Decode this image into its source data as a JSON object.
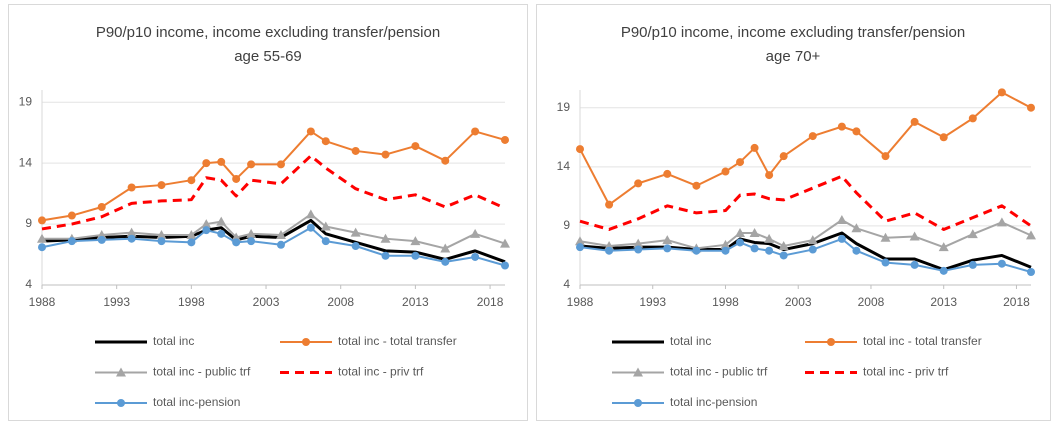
{
  "chart_data": [
    {
      "type": "line",
      "title": [
        "P90/p10 income, income excluding transfer/pension",
        "age 55-69"
      ],
      "x": [
        1988,
        1990,
        1992,
        1994,
        1996,
        1998,
        1999,
        2000,
        2001,
        2002,
        2004,
        2006,
        2007,
        2009,
        2011,
        2013,
        2015,
        2017,
        2019
      ],
      "xlim": [
        1988,
        2019
      ],
      "xticks": [
        1988,
        1993,
        1998,
        2003,
        2008,
        2013,
        2018
      ],
      "ylim": [
        4,
        20
      ],
      "yticks": [
        4,
        9,
        14,
        19
      ],
      "grid": true,
      "series": [
        {
          "name": "total inc",
          "color": "#000000",
          "width": 3,
          "values": [
            7.6,
            7.7,
            7.9,
            8.0,
            7.9,
            8.0,
            8.5,
            8.7,
            7.7,
            8.0,
            7.9,
            9.3,
            8.2,
            7.5,
            6.8,
            6.7,
            6.1,
            6.8,
            5.9
          ]
        },
        {
          "name": "total inc - total transfer",
          "color": "#ed7d31",
          "marker": "circle",
          "values": [
            9.3,
            9.7,
            10.4,
            12.0,
            12.2,
            12.6,
            14.0,
            14.1,
            12.7,
            13.9,
            13.9,
            16.6,
            15.8,
            15.0,
            14.7,
            15.4,
            14.2,
            16.6,
            15.9
          ]
        },
        {
          "name": "total inc - public trf",
          "color": "#a5a5a5",
          "marker": "triangle",
          "values": [
            7.8,
            7.8,
            8.1,
            8.3,
            8.1,
            8.1,
            9.0,
            9.2,
            7.9,
            8.2,
            8.1,
            9.8,
            8.8,
            8.3,
            7.8,
            7.6,
            7.0,
            8.2,
            7.4
          ]
        },
        {
          "name": "total inc - priv trf",
          "color": "#ff0000",
          "dash": true,
          "values": [
            8.6,
            9.0,
            9.6,
            10.7,
            10.9,
            11.0,
            12.8,
            12.6,
            11.3,
            12.6,
            12.3,
            14.6,
            13.6,
            11.9,
            11.0,
            11.4,
            10.4,
            11.4,
            10.3
          ]
        },
        {
          "name": "total inc-pension",
          "color": "#5b9bd5",
          "marker": "circle",
          "values": [
            7.1,
            7.6,
            7.7,
            7.8,
            7.6,
            7.5,
            8.5,
            8.2,
            7.5,
            7.6,
            7.3,
            8.7,
            7.6,
            7.2,
            6.4,
            6.4,
            5.9,
            6.3,
            5.6
          ]
        }
      ]
    },
    {
      "type": "line",
      "title": [
        "P90/p10 income, income excluding transfer/pension",
        "age 70+"
      ],
      "x": [
        1988,
        1990,
        1992,
        1994,
        1996,
        1998,
        1999,
        2000,
        2001,
        2002,
        2004,
        2006,
        2007,
        2009,
        2011,
        2013,
        2015,
        2017,
        2019
      ],
      "xlim": [
        1988,
        2019
      ],
      "xticks": [
        1988,
        1993,
        1998,
        2003,
        2008,
        2013,
        2018
      ],
      "ylim": [
        4,
        20.5
      ],
      "yticks": [
        4,
        9,
        14,
        19
      ],
      "grid": true,
      "series": [
        {
          "name": "total inc",
          "color": "#000000",
          "width": 3,
          "values": [
            7.3,
            7.1,
            7.2,
            7.2,
            7.0,
            7.0,
            7.9,
            7.6,
            7.5,
            7.0,
            7.5,
            8.4,
            7.5,
            6.2,
            6.2,
            5.3,
            6.1,
            6.5,
            5.5
          ]
        },
        {
          "name": "total inc - total transfer",
          "color": "#ed7d31",
          "marker": "circle",
          "values": [
            15.5,
            10.8,
            12.6,
            13.4,
            12.4,
            13.6,
            14.4,
            15.6,
            13.3,
            14.9,
            16.6,
            17.4,
            17.0,
            14.9,
            17.8,
            16.5,
            18.1,
            20.3,
            19.0
          ]
        },
        {
          "name": "total inc - public trf",
          "color": "#a5a5a5",
          "marker": "triangle",
          "values": [
            7.7,
            7.3,
            7.5,
            7.8,
            7.1,
            7.4,
            8.4,
            8.4,
            7.9,
            7.3,
            7.8,
            9.5,
            8.8,
            8.0,
            8.1,
            7.2,
            8.3,
            9.3,
            8.2
          ]
        },
        {
          "name": "total inc - priv trf",
          "color": "#ff0000",
          "dash": true,
          "values": [
            9.4,
            8.7,
            9.6,
            10.7,
            10.1,
            10.3,
            11.6,
            11.7,
            11.3,
            11.2,
            12.2,
            13.2,
            11.8,
            9.4,
            10.1,
            8.7,
            9.7,
            10.7,
            9.0
          ]
        },
        {
          "name": "total inc-pension",
          "color": "#5b9bd5",
          "marker": "circle",
          "values": [
            7.2,
            6.9,
            7.0,
            7.1,
            6.9,
            6.9,
            7.6,
            7.1,
            6.9,
            6.5,
            7.0,
            7.9,
            6.9,
            5.9,
            5.7,
            5.2,
            5.7,
            5.8,
            5.1
          ]
        }
      ]
    }
  ]
}
